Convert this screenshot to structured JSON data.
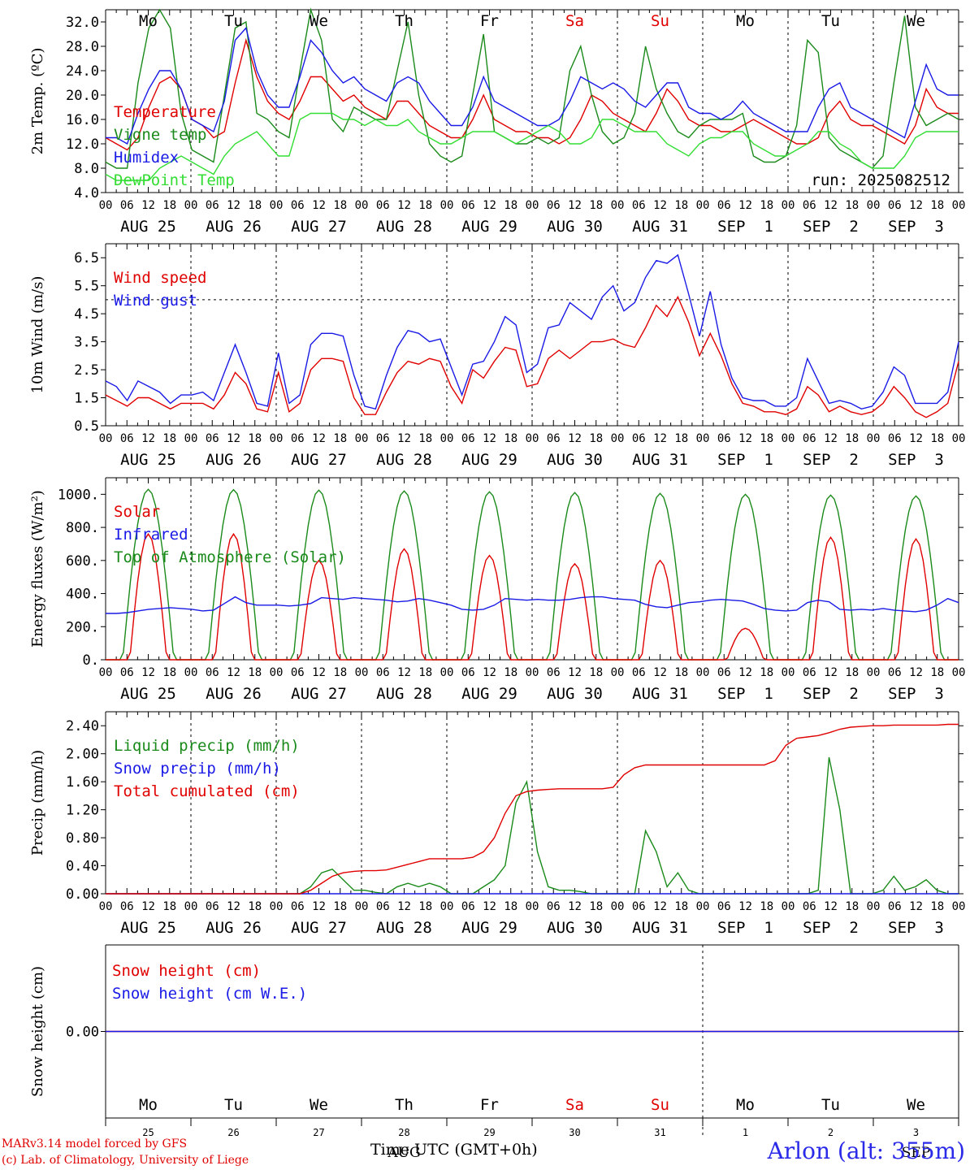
{
  "chart_data": [
    {
      "type": "line",
      "ylabel": "2m Temp. (ºC)",
      "ylim": [
        4,
        34
      ],
      "yticks": [
        "4.0",
        "8.0",
        "12.0",
        "16.0",
        "20.0",
        "24.0",
        "28.0",
        "32.0"
      ],
      "days_top": [
        "Mo",
        "Tu",
        "We",
        "Th",
        "Fr",
        "Sa",
        "Su",
        "Mo",
        "Tu",
        "We"
      ],
      "days_top_colors": [
        "#000000",
        "#000000",
        "#000000",
        "#000000",
        "#000000",
        "#e00000",
        "#e00000",
        "#000000",
        "#000000",
        "#000000"
      ],
      "annotation": "run: 2025082512",
      "series": [
        {
          "name": "Temperature",
          "color": "#e00000",
          "values": [
            13,
            12,
            11,
            13,
            18,
            22,
            23,
            21,
            16,
            15,
            13,
            14,
            22,
            29,
            23,
            19,
            17,
            16,
            19,
            23,
            23,
            21,
            19,
            20,
            18,
            17,
            16,
            19,
            19,
            17,
            15,
            14,
            13,
            13,
            16,
            20,
            16,
            15,
            14,
            14,
            13,
            13,
            12,
            13,
            16,
            20,
            19,
            17,
            16,
            15,
            14,
            17,
            21,
            19,
            16,
            15,
            15,
            14,
            14,
            15,
            16,
            15,
            14,
            13,
            12,
            12,
            13,
            17,
            19,
            16,
            15,
            15,
            14,
            13,
            12,
            15,
            21,
            18,
            17,
            17
          ]
        },
        {
          "name": "Vigne temp",
          "color": "#1a8a1a",
          "values": [
            9,
            8,
            8,
            22,
            31,
            34,
            31,
            17,
            11,
            10,
            9,
            20,
            31,
            32,
            17,
            16,
            14,
            13,
            24,
            34,
            29,
            16,
            14,
            18,
            17,
            16,
            16,
            24,
            32,
            20,
            12,
            10,
            9,
            10,
            20,
            30,
            14,
            13,
            12,
            12,
            13,
            12,
            13,
            24,
            28,
            20,
            14,
            12,
            13,
            17,
            28,
            21,
            17,
            14,
            13,
            15,
            16,
            16,
            16,
            17,
            10,
            9,
            9,
            10,
            15,
            29,
            27,
            13,
            11,
            10,
            9,
            8,
            10,
            22,
            33,
            18,
            15,
            16,
            17,
            16
          ]
        },
        {
          "name": "Humidex",
          "color": "#1a1ae6",
          "values": [
            13,
            13,
            12,
            17,
            21,
            24,
            24,
            21,
            16,
            15,
            14,
            19,
            29,
            31,
            24,
            20,
            18,
            18,
            23,
            29,
            27,
            24,
            22,
            23,
            21,
            20,
            19,
            22,
            23,
            22,
            19,
            17,
            15,
            15,
            18,
            23,
            19,
            18,
            17,
            16,
            15,
            15,
            16,
            19,
            23,
            22,
            21,
            22,
            21,
            19,
            18,
            20,
            22,
            22,
            18,
            17,
            17,
            16,
            17,
            19,
            17,
            16,
            15,
            14,
            14,
            14,
            18,
            21,
            22,
            18,
            17,
            16,
            15,
            14,
            13,
            19,
            25,
            21,
            20,
            20
          ]
        },
        {
          "name": "DewPoint Temp",
          "color": "#33dd33",
          "values": [
            7,
            6,
            6,
            6,
            6,
            8,
            9,
            10,
            9,
            8,
            7,
            10,
            12,
            13,
            14,
            12,
            10,
            10,
            16,
            17,
            17,
            17,
            16,
            16,
            15,
            16,
            15,
            15,
            16,
            14,
            13,
            12,
            12,
            13,
            14,
            14,
            14,
            13,
            12,
            13,
            14,
            15,
            14,
            12,
            12,
            13,
            16,
            16,
            15,
            14,
            14,
            14,
            12,
            11,
            10,
            12,
            13,
            13,
            14,
            14,
            12,
            11,
            10,
            10,
            11,
            12,
            14,
            14,
            12,
            11,
            9,
            8,
            8,
            8,
            10,
            13,
            14,
            14,
            14,
            14
          ]
        }
      ]
    },
    {
      "type": "line",
      "ylabel": "10m Wind (m/s)",
      "ylim": [
        0.5,
        7.0
      ],
      "yticks": [
        "0.5",
        "1.5",
        "2.5",
        "3.5",
        "4.5",
        "5.5",
        "6.5"
      ],
      "dashed_y": 5.0,
      "series": [
        {
          "name": "Wind speed",
          "color": "#e00000",
          "values": [
            1.6,
            1.4,
            1.2,
            1.5,
            1.5,
            1.3,
            1.1,
            1.3,
            1.3,
            1.3,
            1.1,
            1.6,
            2.4,
            2.0,
            1.1,
            1.0,
            2.4,
            1.0,
            1.3,
            2.5,
            2.9,
            2.9,
            2.8,
            1.5,
            0.9,
            0.9,
            1.7,
            2.4,
            2.8,
            2.7,
            2.9,
            2.8,
            1.9,
            1.3,
            2.5,
            2.2,
            2.8,
            3.3,
            3.2,
            1.9,
            2.0,
            2.9,
            3.2,
            2.9,
            3.2,
            3.5,
            3.5,
            3.6,
            3.4,
            3.3,
            4.0,
            4.8,
            4.4,
            5.1,
            4.2,
            3.0,
            3.8,
            3.0,
            2.0,
            1.3,
            1.2,
            1.0,
            1.0,
            0.9,
            1.1,
            1.9,
            1.6,
            1.0,
            1.2,
            1.0,
            0.9,
            1.0,
            1.3,
            1.9,
            1.5,
            1.0,
            0.8,
            1.0,
            1.3,
            2.8
          ]
        },
        {
          "name": "Wind gust",
          "color": "#1a1ae6",
          "values": [
            2.1,
            1.9,
            1.4,
            2.1,
            1.9,
            1.7,
            1.3,
            1.6,
            1.6,
            1.7,
            1.4,
            2.4,
            3.4,
            2.4,
            1.3,
            1.2,
            3.1,
            1.3,
            1.6,
            3.4,
            3.8,
            3.8,
            3.7,
            2.3,
            1.2,
            1.1,
            2.3,
            3.3,
            3.9,
            3.8,
            3.5,
            3.6,
            2.6,
            1.6,
            2.7,
            2.8,
            3.5,
            4.4,
            4.1,
            2.4,
            2.7,
            4.0,
            4.1,
            4.9,
            4.6,
            4.3,
            5.1,
            5.5,
            4.6,
            4.9,
            5.8,
            6.4,
            6.3,
            6.6,
            5.2,
            3.7,
            5.3,
            3.4,
            2.2,
            1.5,
            1.4,
            1.4,
            1.2,
            1.2,
            1.5,
            2.9,
            2.1,
            1.3,
            1.4,
            1.3,
            1.1,
            1.2,
            1.7,
            2.6,
            2.3,
            1.3,
            1.3,
            1.3,
            1.7,
            3.5
          ]
        }
      ]
    },
    {
      "type": "line",
      "ylabel": "Energy fluxes (W/m²)",
      "ylim": [
        0,
        1100
      ],
      "yticks": [
        "0.",
        "200.",
        "400.",
        "600.",
        "800.",
        "1000."
      ],
      "series": [
        {
          "name": "Solar",
          "color": "#e00000",
          "daily_peaks": [
            760,
            760,
            600,
            670,
            630,
            580,
            600,
            190,
            740,
            730
          ]
        },
        {
          "name": "Infrared",
          "color": "#1a1ae6",
          "values": [
            280,
            280,
            285,
            295,
            305,
            310,
            315,
            310,
            305,
            295,
            300,
            340,
            380,
            345,
            330,
            330,
            330,
            325,
            330,
            340,
            375,
            370,
            365,
            375,
            370,
            365,
            360,
            350,
            355,
            370,
            360,
            345,
            330,
            305,
            300,
            305,
            330,
            370,
            365,
            360,
            365,
            360,
            360,
            365,
            375,
            380,
            380,
            370,
            365,
            360,
            335,
            320,
            315,
            330,
            345,
            350,
            360,
            365,
            360,
            355,
            335,
            310,
            300,
            295,
            300,
            345,
            360,
            350,
            305,
            300,
            305,
            300,
            310,
            300,
            295,
            290,
            300,
            330,
            370,
            345
          ]
        },
        {
          "name": "Top of Atmosphere (Solar)",
          "color": "#1a8a1a",
          "daily_peaks": [
            1030,
            1028,
            1025,
            1020,
            1015,
            1010,
            1005,
            1000,
            995,
            990
          ]
        }
      ]
    },
    {
      "type": "line",
      "ylabel": "Precip (mm/h)",
      "ylim": [
        0,
        2.6
      ],
      "yticks": [
        "0.00",
        "0.40",
        "0.80",
        "1.20",
        "1.60",
        "2.00",
        "2.40"
      ],
      "series": [
        {
          "name": "Liquid precip (mm/h)",
          "color": "#1a8a1a",
          "values": [
            0,
            0,
            0,
            0,
            0,
            0,
            0,
            0,
            0,
            0,
            0,
            0,
            0,
            0,
            0,
            0,
            0,
            0,
            0,
            0.1,
            0.3,
            0.35,
            0.2,
            0.05,
            0.05,
            0.02,
            0,
            0.1,
            0.15,
            0.1,
            0.15,
            0.1,
            0,
            0,
            0,
            0.1,
            0.2,
            0.4,
            1.3,
            1.6,
            0.6,
            0.1,
            0.05,
            0.05,
            0.03,
            0,
            0,
            0,
            0,
            0,
            0.9,
            0.6,
            0.1,
            0.3,
            0.05,
            0,
            0,
            0,
            0,
            0,
            0,
            0,
            0,
            0,
            0,
            0,
            0.05,
            1.95,
            1.2,
            0,
            0,
            0,
            0.05,
            0.25,
            0.05,
            0.1,
            0.2,
            0.05,
            0,
            0
          ]
        },
        {
          "name": "Snow precip (mm/h)",
          "color": "#1a1ae6",
          "values": [
            0
          ]
        },
        {
          "name": "Total cumulated (cm)",
          "color": "#e00000",
          "values": [
            0,
            0,
            0,
            0,
            0,
            0,
            0,
            0,
            0,
            0,
            0,
            0,
            0,
            0,
            0,
            0,
            0,
            0,
            0,
            0.05,
            0.15,
            0.25,
            0.3,
            0.32,
            0.33,
            0.33,
            0.34,
            0.38,
            0.42,
            0.46,
            0.5,
            0.5,
            0.5,
            0.5,
            0.52,
            0.6,
            0.8,
            1.15,
            1.4,
            1.46,
            1.48,
            1.49,
            1.5,
            1.5,
            1.5,
            1.5,
            1.5,
            1.52,
            1.7,
            1.8,
            1.84,
            1.84,
            1.84,
            1.84,
            1.84,
            1.84,
            1.84,
            1.84,
            1.84,
            1.84,
            1.84,
            1.84,
            1.9,
            2.12,
            2.22,
            2.24,
            2.26,
            2.3,
            2.35,
            2.38,
            2.39,
            2.4,
            2.4,
            2.41,
            2.41,
            2.41,
            2.41,
            2.41,
            2.42,
            2.42
          ]
        }
      ]
    },
    {
      "type": "line",
      "ylabel": "Snow height (cm)",
      "ylim": [
        -1,
        1
      ],
      "yticks": [
        "0.00"
      ],
      "series": [
        {
          "name": "Snow height (cm)",
          "color": "#e00000",
          "values": [
            0
          ]
        },
        {
          "name": "Snow height (cm W.E.)",
          "color": "#1a1ae6",
          "values": [
            0
          ]
        }
      ]
    }
  ],
  "axes": {
    "hour_ticks": [
      "00",
      "06",
      "12",
      "18"
    ],
    "final_tick": "00",
    "date_labels": [
      "AUG 25",
      "AUG 26",
      "AUG 27",
      "AUG 28",
      "AUG 29",
      "AUG 30",
      "AUG 31",
      "SEP  1",
      "SEP  2",
      "SEP  3"
    ]
  },
  "bottom_panel": {
    "day_names": [
      "Mo",
      "Tu",
      "We",
      "Th",
      "Fr",
      "Sa",
      "Su",
      "Mo",
      "Tu",
      "We"
    ],
    "day_colors": [
      "#000000",
      "#000000",
      "#000000",
      "#000000",
      "#000000",
      "#e00000",
      "#e00000",
      "#000000",
      "#000000",
      "#000000"
    ],
    "day_numbers": [
      "25",
      "26",
      "27",
      "28",
      "29",
      "30",
      "31",
      "1",
      "2",
      "3"
    ],
    "month_labels": [
      "AUG",
      "SEP"
    ]
  },
  "footer": {
    "credit_line1": "MARv3.14 model forced by GFS",
    "credit_line2": "(c) Lab. of Climatology, University of Liege",
    "time_label": "Time UTC (GMT+0h)",
    "station": "Arlon (alt: 355m)"
  }
}
